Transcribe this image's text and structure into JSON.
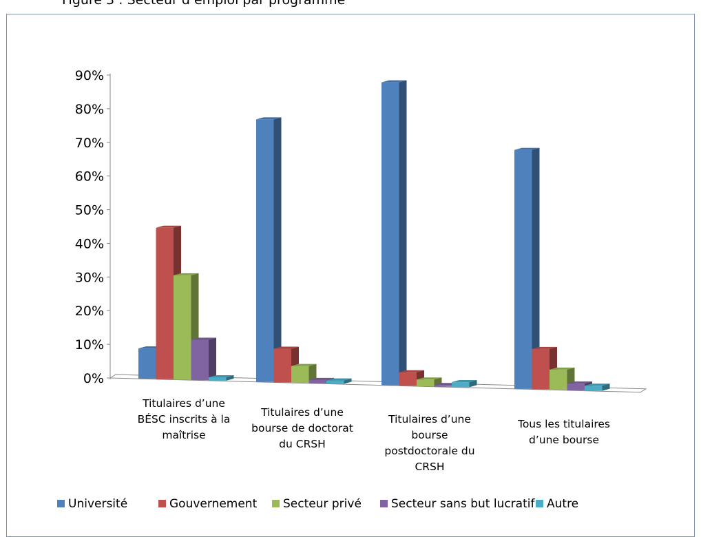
{
  "caption": "Figure 3 : Secteur d’emploi par programme",
  "chart_data": {
    "type": "bar",
    "title": "",
    "xlabel": "",
    "ylabel": "",
    "ylim": [
      0,
      90
    ],
    "ytick_labels": [
      "0%",
      "10%",
      "20%",
      "30%",
      "40%",
      "50%",
      "60%",
      "70%",
      "80%",
      "90%"
    ],
    "categories": [
      [
        "Titulaires d’une",
        "BÉSC inscrits à la",
        "maîtrise"
      ],
      [
        "Titulaires d’une",
        "bourse de doctorat",
        "du CRSH"
      ],
      [
        "Titulaires d’une",
        "bourse",
        "postdoctorale du",
        "CRSH"
      ],
      [
        "Tous les titulaires",
        "d’une bourse"
      ]
    ],
    "series": [
      {
        "name": "Université",
        "values": [
          9,
          78,
          90,
          71
        ],
        "color": "#4f81bd"
      },
      {
        "name": "Gouvernement",
        "values": [
          45,
          10,
          4,
          12
        ],
        "color": "#c0504d"
      },
      {
        "name": "Secteur privé",
        "values": [
          31,
          5,
          2,
          6
        ],
        "color": "#9bbb59"
      },
      {
        "name": "Secteur sans but lucratif",
        "values": [
          12,
          1,
          0.5,
          2
        ],
        "color": "#8064a2"
      },
      {
        "name": "Autre",
        "values": [
          1,
          1,
          1.5,
          1.5
        ],
        "color": "#4bacc6"
      }
    ],
    "legend": "bottom",
    "grid": false
  }
}
